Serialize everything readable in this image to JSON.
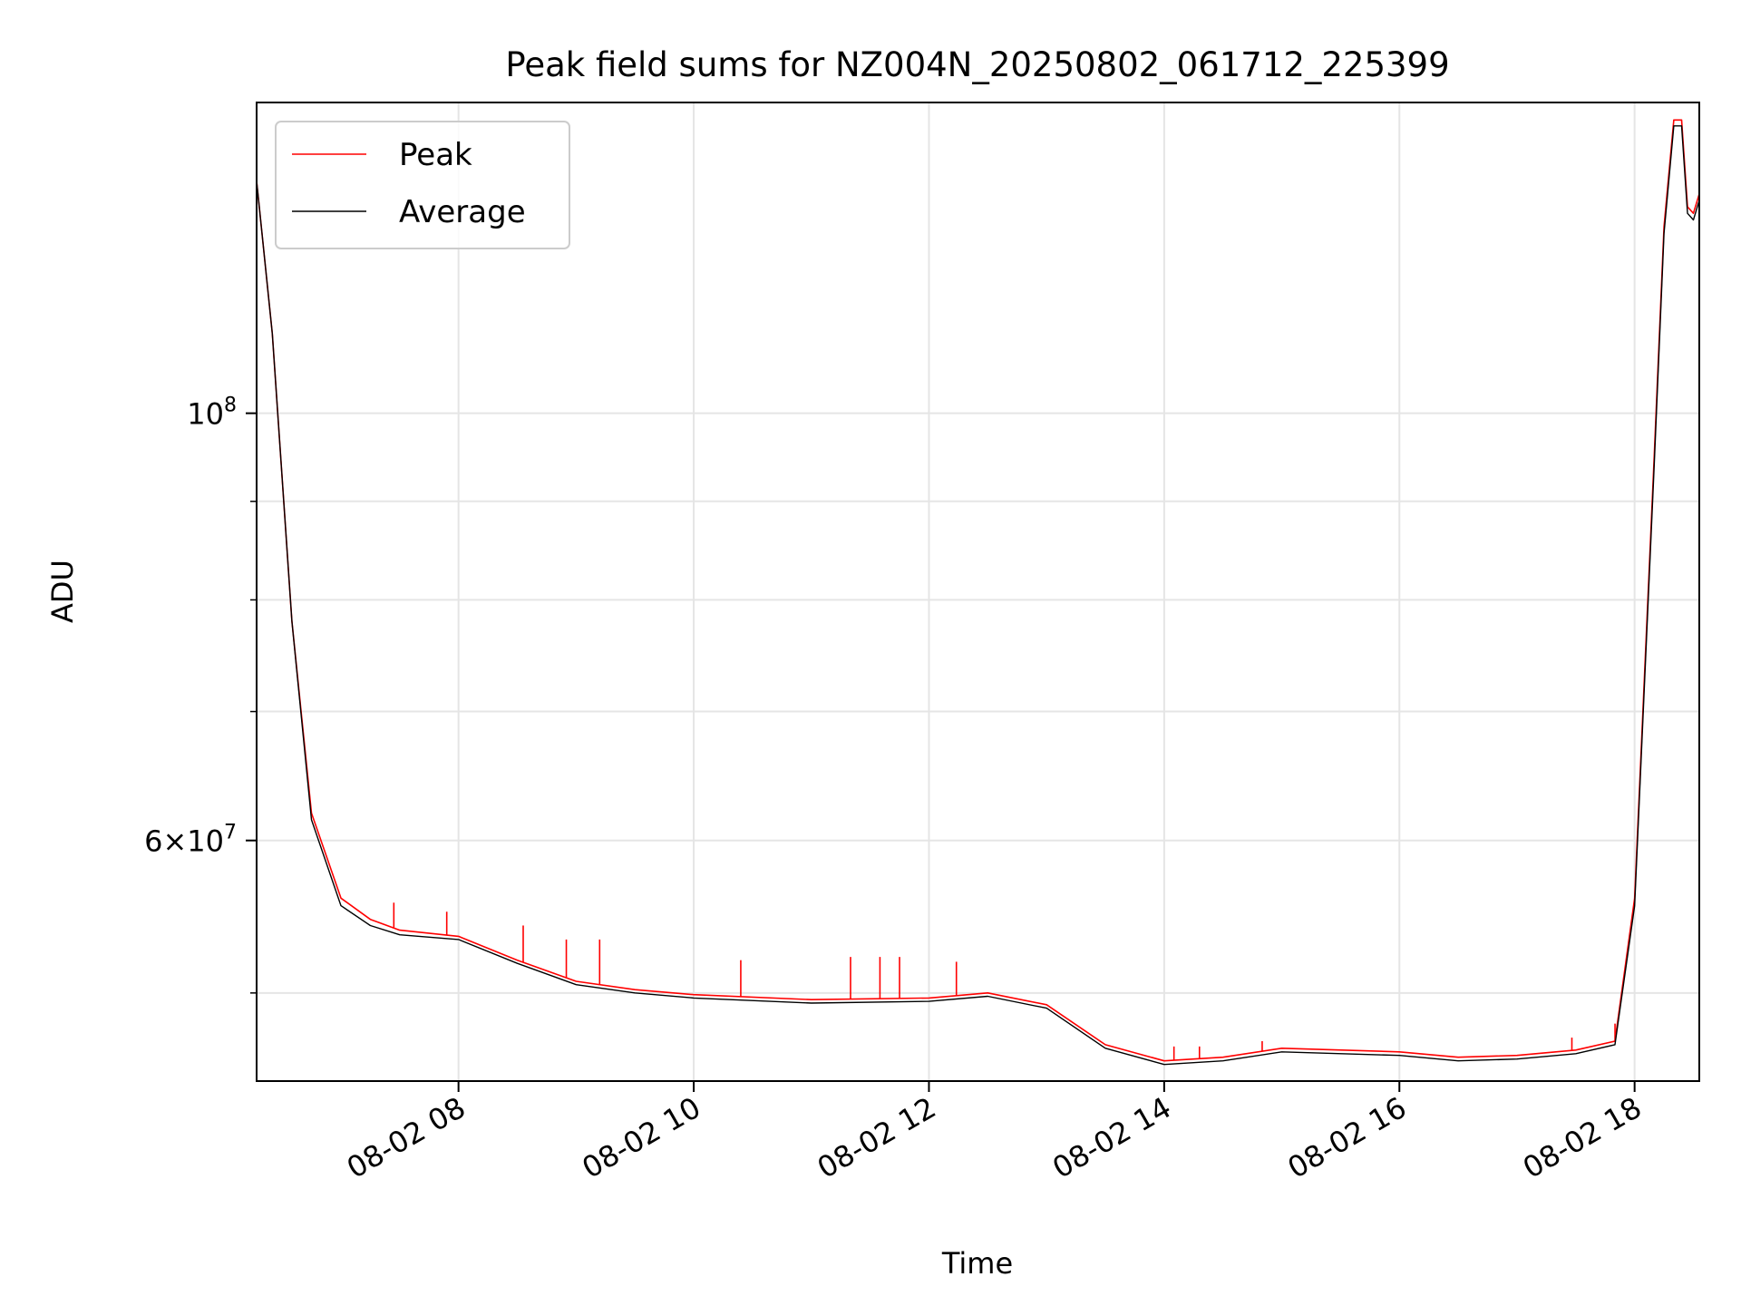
{
  "chart_data": {
    "type": "line",
    "title": "Peak field sums for NZ004N_20250802_061712_225399",
    "xlabel": "Time",
    "ylabel": "ADU",
    "yscale": "log",
    "grid": true,
    "legend_position": "upper-left",
    "xlim": [
      "2025-08-02 06:17",
      "2025-08-02 18:33"
    ],
    "ylim": [
      45000000,
      145000000
    ],
    "x_ticks": [
      {
        "value": "2025-08-02 08:00",
        "label": "08-02 08"
      },
      {
        "value": "2025-08-02 10:00",
        "label": "08-02 10"
      },
      {
        "value": "2025-08-02 12:00",
        "label": "08-02 12"
      },
      {
        "value": "2025-08-02 14:00",
        "label": "08-02 14"
      },
      {
        "value": "2025-08-02 16:00",
        "label": "08-02 16"
      },
      {
        "value": "2025-08-02 18:00",
        "label": "08-02 18"
      }
    ],
    "y_ticks_major": [
      {
        "value": 60000000,
        "label_mantissa": "6",
        "label_sep": "×",
        "label_base": "10",
        "label_exp": "7"
      },
      {
        "value": 100000000,
        "label_mantissa": "",
        "label_sep": "",
        "label_base": "10",
        "label_exp": "8"
      }
    ],
    "y_ticks_minor": [
      50000000,
      70000000,
      80000000,
      90000000
    ],
    "series": [
      {
        "name": "Peak",
        "color": "#ff0000",
        "x": [
          "2025-08-02 06:17",
          "2025-08-02 06:25",
          "2025-08-02 06:35",
          "2025-08-02 06:45",
          "2025-08-02 07:00",
          "2025-08-02 07:15",
          "2025-08-02 07:30",
          "2025-08-02 08:00",
          "2025-08-02 08:30",
          "2025-08-02 09:00",
          "2025-08-02 09:30",
          "2025-08-02 10:00",
          "2025-08-02 11:00",
          "2025-08-02 12:00",
          "2025-08-02 12:30",
          "2025-08-02 13:00",
          "2025-08-02 13:30",
          "2025-08-02 14:00",
          "2025-08-02 14:30",
          "2025-08-02 15:00",
          "2025-08-02 16:00",
          "2025-08-02 16:30",
          "2025-08-02 17:00",
          "2025-08-02 17:30",
          "2025-08-02 17:50",
          "2025-08-02 18:00",
          "2025-08-02 18:10",
          "2025-08-02 18:15",
          "2025-08-02 18:20",
          "2025-08-02 18:24",
          "2025-08-02 18:27",
          "2025-08-02 18:30",
          "2025-08-02 18:33"
        ],
        "y": [
          132000000,
          110000000,
          78000000,
          62000000,
          56000000,
          54600000,
          53900000,
          53500000,
          52000000,
          50700000,
          50200000,
          49900000,
          49600000,
          49700000,
          50000000,
          49300000,
          47000000,
          46100000,
          46300000,
          46800000,
          46600000,
          46300000,
          46400000,
          46700000,
          47200000,
          56000000,
          95000000,
          125000000,
          142000000,
          142000000,
          128000000,
          127000000,
          130000000
        ],
        "spikes": [
          {
            "x": "2025-08-02 07:27",
            "y": 55700000
          },
          {
            "x": "2025-08-02 07:54",
            "y": 55100000
          },
          {
            "x": "2025-08-02 08:33",
            "y": 54200000
          },
          {
            "x": "2025-08-02 08:55",
            "y": 53300000
          },
          {
            "x": "2025-08-02 09:12",
            "y": 53300000
          },
          {
            "x": "2025-08-02 10:24",
            "y": 52000000
          },
          {
            "x": "2025-08-02 11:20",
            "y": 52200000
          },
          {
            "x": "2025-08-02 11:35",
            "y": 52200000
          },
          {
            "x": "2025-08-02 11:45",
            "y": 52200000
          },
          {
            "x": "2025-08-02 12:14",
            "y": 51900000
          },
          {
            "x": "2025-08-02 14:05",
            "y": 46900000
          },
          {
            "x": "2025-08-02 14:18",
            "y": 46900000
          },
          {
            "x": "2025-08-02 14:50",
            "y": 47200000
          },
          {
            "x": "2025-08-02 17:28",
            "y": 47400000
          },
          {
            "x": "2025-08-02 17:50",
            "y": 48200000
          }
        ]
      },
      {
        "name": "Average",
        "color": "#000000",
        "x": [
          "2025-08-02 06:17",
          "2025-08-02 06:25",
          "2025-08-02 06:35",
          "2025-08-02 06:45",
          "2025-08-02 07:00",
          "2025-08-02 07:15",
          "2025-08-02 07:30",
          "2025-08-02 08:00",
          "2025-08-02 08:30",
          "2025-08-02 09:00",
          "2025-08-02 09:30",
          "2025-08-02 10:00",
          "2025-08-02 11:00",
          "2025-08-02 12:00",
          "2025-08-02 12:30",
          "2025-08-02 13:00",
          "2025-08-02 13:30",
          "2025-08-02 14:00",
          "2025-08-02 14:30",
          "2025-08-02 15:00",
          "2025-08-02 16:00",
          "2025-08-02 16:30",
          "2025-08-02 17:00",
          "2025-08-02 17:30",
          "2025-08-02 17:50",
          "2025-08-02 18:00",
          "2025-08-02 18:10",
          "2025-08-02 18:15",
          "2025-08-02 18:20",
          "2025-08-02 18:24",
          "2025-08-02 18:27",
          "2025-08-02 18:30",
          "2025-08-02 18:33"
        ],
        "y": [
          132000000,
          110000000,
          78000000,
          61500000,
          55500000,
          54200000,
          53600000,
          53300000,
          51800000,
          50500000,
          50000000,
          49700000,
          49400000,
          49500000,
          49800000,
          49100000,
          46800000,
          45900000,
          46100000,
          46600000,
          46400000,
          46100000,
          46200000,
          46500000,
          47000000,
          55500000,
          94000000,
          124000000,
          141000000,
          141000000,
          127000000,
          126000000,
          129000000
        ]
      }
    ]
  }
}
